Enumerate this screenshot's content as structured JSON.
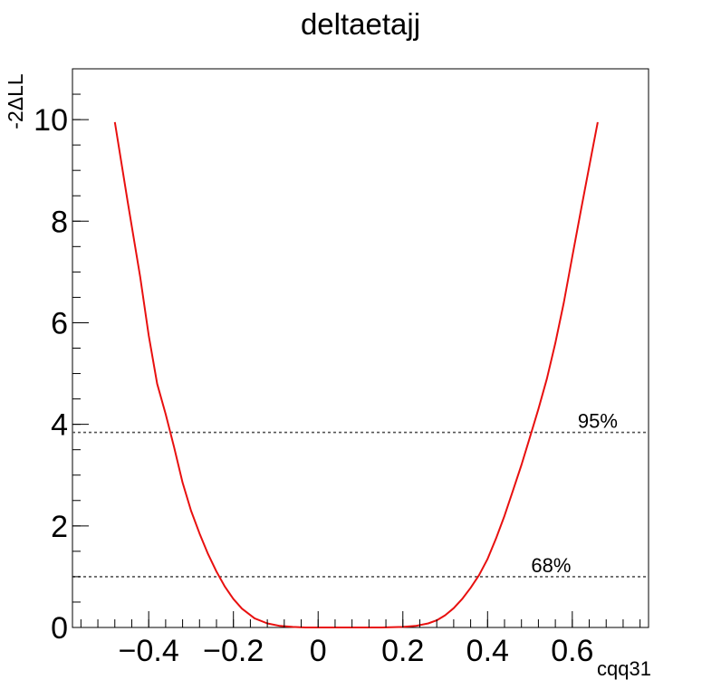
{
  "chart_data": {
    "type": "line",
    "title": "deltaetajj",
    "xlabel": "cqq31",
    "ylabel": "-2ΔLL",
    "xlim": [
      -0.58,
      0.78
    ],
    "ylim": [
      0,
      11
    ],
    "x_ticks": [
      -0.4,
      -0.2,
      0,
      0.2,
      0.4,
      0.6
    ],
    "x_tick_labels": [
      "−0.4",
      "−0.2",
      "0",
      "0.2",
      "0.4",
      "0.6"
    ],
    "y_ticks": [
      0,
      2,
      4,
      6,
      8,
      10
    ],
    "y_tick_labels": [
      "0",
      "2",
      "4",
      "6",
      "8",
      "10"
    ],
    "grid": false,
    "series": [
      {
        "color": "#e8100f",
        "x": [
          -0.48,
          -0.45,
          -0.42,
          -0.4,
          -0.38,
          -0.36,
          -0.34,
          -0.32,
          -0.3,
          -0.28,
          -0.26,
          -0.24,
          -0.22,
          -0.2,
          -0.18,
          -0.15,
          -0.12,
          -0.09,
          -0.06,
          -0.03,
          0.0,
          0.05,
          0.1,
          0.15,
          0.2,
          0.23,
          0.26,
          0.28,
          0.3,
          0.32,
          0.34,
          0.36,
          0.38,
          0.4,
          0.42,
          0.44,
          0.46,
          0.48,
          0.5,
          0.52,
          0.54,
          0.56,
          0.58,
          0.6,
          0.62,
          0.645,
          0.66
        ],
        "y": [
          9.95,
          8.4,
          6.9,
          5.75,
          4.8,
          4.2,
          3.55,
          2.85,
          2.3,
          1.85,
          1.45,
          1.1,
          0.8,
          0.56,
          0.37,
          0.18,
          0.08,
          0.03,
          0.01,
          0.0,
          0.0,
          0.0,
          0.0,
          0.0,
          0.01,
          0.03,
          0.08,
          0.14,
          0.24,
          0.38,
          0.56,
          0.78,
          1.03,
          1.35,
          1.75,
          2.2,
          2.7,
          3.2,
          3.75,
          4.3,
          4.9,
          5.6,
          6.4,
          7.3,
          8.2,
          9.3,
          9.95
        ]
      }
    ],
    "reference_lines": [
      {
        "y": 3.84,
        "label": "95%",
        "color": "#555555",
        "style": "dotted",
        "label_x": 0.66
      },
      {
        "y": 1.0,
        "label": "68%",
        "color": "#555555",
        "style": "dotted",
        "label_x": 0.55
      }
    ]
  }
}
